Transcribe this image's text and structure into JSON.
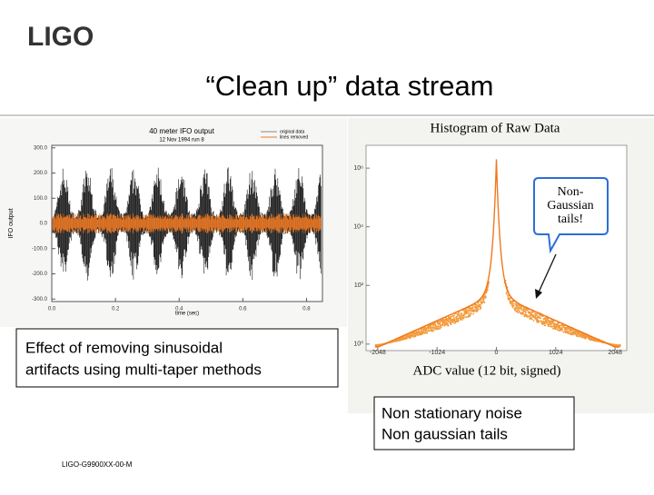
{
  "logo": "LIGO",
  "title": "“Clean up” data stream",
  "left_chart": {
    "title": "40 meter IFO output",
    "subtitle": "12 Nov 1994 run 8",
    "legend": [
      "original data",
      "lines removed"
    ],
    "x_label": "time (sec)",
    "y_label": "IFO output",
    "xlim": [
      0,
      0.85
    ],
    "xticks": [
      {
        "value": 0,
        "label": "0.0"
      },
      {
        "value": 0.2,
        "label": "0.2"
      },
      {
        "value": 0.4,
        "label": "0.4"
      },
      {
        "value": 0.6,
        "label": "0.6"
      },
      {
        "value": 0.8,
        "label": "0.8"
      }
    ],
    "ylim": [
      -310,
      310
    ],
    "yticks": [
      {
        "value": 300,
        "label": "300.0"
      },
      {
        "value": 200,
        "label": "200.0"
      },
      {
        "value": 100,
        "label": "100.0"
      },
      {
        "value": 0,
        "label": "0.0"
      },
      {
        "value": -100,
        "label": "-100.0"
      },
      {
        "value": -200,
        "label": "-200.0"
      },
      {
        "value": -300,
        "label": "-300.0"
      }
    ]
  },
  "left_caption": [
    "Effect of removing sinusoidal",
    "artifacts using multi-taper methods"
  ],
  "right_chart": {
    "title": "Histogram of Raw Data",
    "x_label": "ADC value (12 bit, signed)",
    "xlim": [
      -2250,
      2250
    ],
    "xticks": [
      -2048,
      -1024,
      0,
      1024,
      2048
    ],
    "log": true,
    "ylim": [
      0.6,
      6000000
    ],
    "yticks": [
      {
        "value": 1,
        "label": "10⁰"
      },
      {
        "value": 100,
        "label": "10²"
      },
      {
        "value": 10000,
        "label": "10⁴"
      },
      {
        "value": 1000000,
        "label": "10⁶"
      }
    ],
    "callout": [
      "Non-",
      "Gaussian",
      "tails!"
    ]
  },
  "right_caption": [
    "Non stationary noise",
    "Non gaussian tails"
  ],
  "footer": "LIGO-G9900XX-00-M"
}
